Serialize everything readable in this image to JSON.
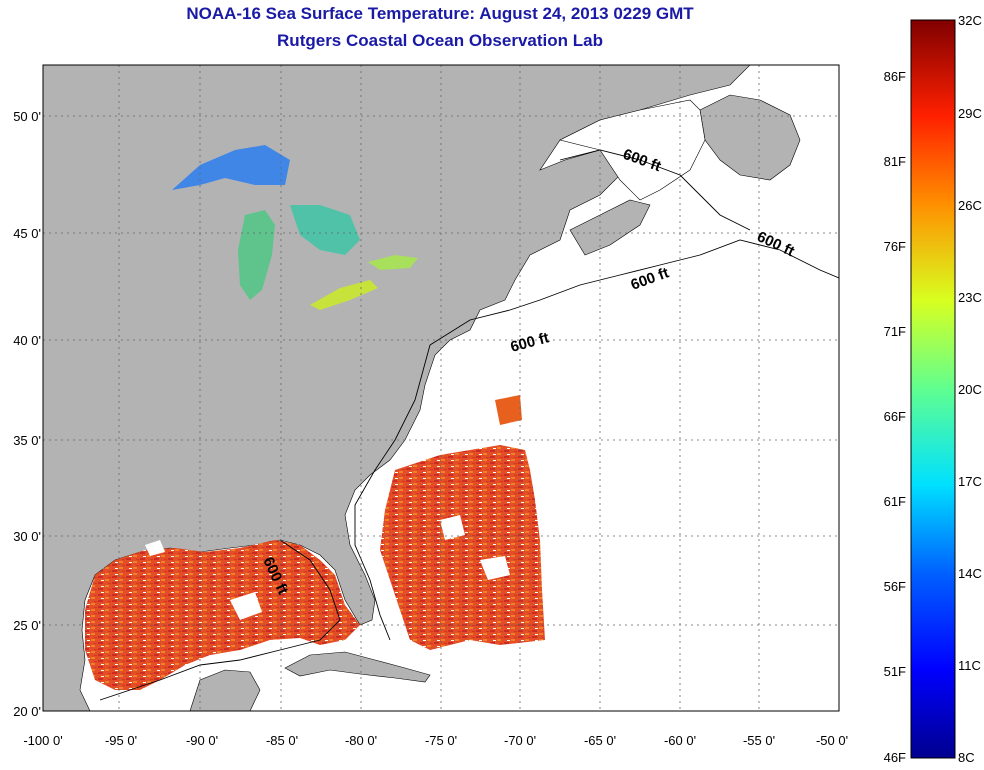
{
  "title": {
    "line1": "NOAA-16 Sea Surface Temperature:  August 24, 2013 0229 GMT",
    "line2": "Rutgers Coastal Ocean Observation Lab"
  },
  "axes": {
    "lat_labels": [
      "50 0'",
      "45 0'",
      "40 0'",
      "35 0'",
      "30 0'",
      "25 0'",
      "20 0'"
    ],
    "lon_labels": [
      "-100 0'",
      "-95 0'",
      "-90 0'",
      "-85 0'",
      "-80 0'",
      "-75 0'",
      "-70 0'",
      "-65 0'",
      "-60 0'",
      "-55 0'",
      "-50 0'"
    ]
  },
  "colorbar": {
    "celsius": [
      "32C",
      "29C",
      "26C",
      "23C",
      "20C",
      "17C",
      "14C",
      "11C",
      "8C"
    ],
    "fahrenheit": [
      "86F",
      "81F",
      "76F",
      "71F",
      "66F",
      "61F",
      "56F",
      "51F",
      "46F"
    ]
  },
  "contour_labels": [
    "600 ft",
    "600 ft",
    "600 ft",
    "600 ft",
    "600 ft"
  ],
  "colors": {
    "land": "#b3b3b3",
    "ocean_nodata": "#ffffff",
    "title": "#1a1aa6",
    "warm": "#e8401a",
    "hot": "#c01a12",
    "cool": "#2a6ee8"
  }
}
